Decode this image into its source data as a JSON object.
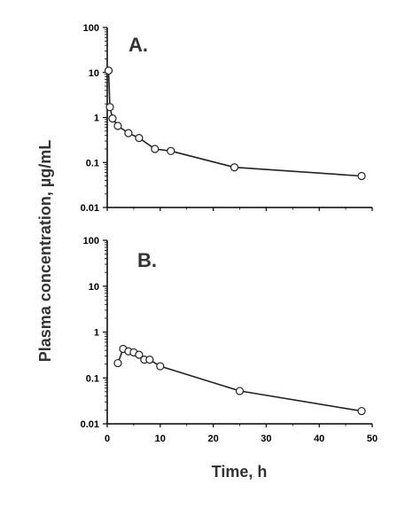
{
  "chart_data": [
    {
      "type": "line",
      "panel_label": "A.",
      "yscale": "log",
      "ylim": [
        0.01,
        100
      ],
      "xlim": [
        0,
        50
      ],
      "y_ticks": [
        "0.01",
        "0.1",
        "1",
        "10",
        "100"
      ],
      "x_ticks": [],
      "series": [
        {
          "x": [
            0.25,
            0.5,
            1,
            2,
            4,
            6,
            9,
            12,
            24,
            48
          ],
          "y": [
            11,
            1.7,
            0.95,
            0.65,
            0.45,
            0.35,
            0.2,
            0.18,
            0.078,
            0.05
          ]
        }
      ]
    },
    {
      "type": "line",
      "panel_label": "B.",
      "yscale": "log",
      "ylim": [
        0.01,
        100
      ],
      "xlim": [
        0,
        50
      ],
      "y_ticks": [
        "0.01",
        "0.1",
        "1",
        "10",
        "100"
      ],
      "x_ticks": [
        "0",
        "10",
        "20",
        "30",
        "40",
        "50"
      ],
      "series": [
        {
          "x": [
            2,
            3,
            4,
            5,
            6,
            7,
            8,
            10,
            25,
            48
          ],
          "y": [
            0.21,
            0.43,
            0.38,
            0.36,
            0.32,
            0.25,
            0.25,
            0.18,
            0.052,
            0.019
          ]
        }
      ]
    }
  ],
  "ylabel": "Plasma concentration, µg/mL",
  "xlabel": "Time, h"
}
